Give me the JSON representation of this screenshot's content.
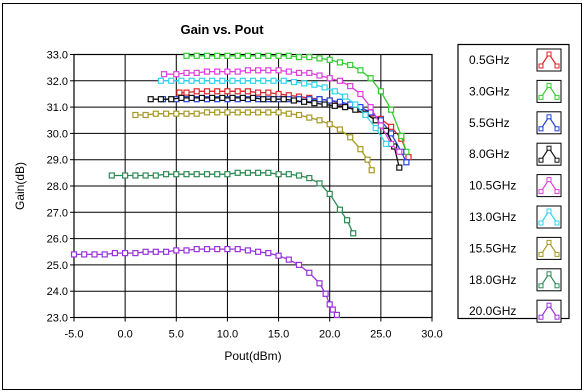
{
  "chart_data": {
    "type": "line",
    "title": "Gain vs. Pout",
    "xlabel": "Pout(dBm)",
    "ylabel": "Gain(dB)",
    "xlim": [
      -5.0,
      30.0
    ],
    "ylim": [
      23.0,
      33.0
    ],
    "xticks": [
      -5.0,
      0.0,
      5.0,
      10.0,
      15.0,
      20.0,
      25.0,
      30.0
    ],
    "yticks": [
      23.0,
      24.0,
      25.0,
      26.0,
      27.0,
      28.0,
      29.0,
      30.0,
      31.0,
      32.0,
      33.0
    ],
    "xtick_labels": [
      "-5.0",
      "0.0",
      "5.0",
      "10.0",
      "15.0",
      "20.0",
      "25.0",
      "30.0"
    ],
    "ytick_labels": [
      "23.0",
      "24.0",
      "25.0",
      "26.0",
      "27.0",
      "28.0",
      "29.0",
      "30.0",
      "31.0",
      "32.0",
      "33.0"
    ],
    "grid": true,
    "legend_position": "right",
    "marker": "open-square",
    "series": [
      {
        "name": "0.5GHz",
        "color": "#e0262b",
        "x": [
          5.3,
          6.0,
          7.0,
          8.0,
          9.0,
          10.0,
          11.0,
          12.0,
          13.0,
          14.0,
          15.0,
          16.0,
          17.0,
          18.0,
          19.0,
          20.0,
          21.0,
          22.0,
          23.0,
          24.0,
          25.0,
          26.0,
          27.0,
          27.7
        ],
        "y": [
          31.55,
          31.55,
          31.6,
          31.6,
          31.6,
          31.6,
          31.6,
          31.6,
          31.55,
          31.55,
          31.5,
          31.45,
          31.4,
          31.35,
          31.3,
          31.25,
          31.15,
          31.05,
          30.9,
          30.75,
          30.55,
          30.25,
          29.8,
          29.1
        ]
      },
      {
        "name": "3.0GHz",
        "color": "#33cc33",
        "x": [
          6.0,
          7.0,
          8.0,
          9.0,
          10.0,
          11.0,
          12.0,
          13.0,
          14.0,
          15.0,
          16.0,
          17.0,
          18.0,
          19.0,
          20.0,
          21.0,
          22.0,
          23.0,
          24.0,
          25.0,
          26.0,
          27.0,
          27.5
        ],
        "y": [
          32.95,
          32.95,
          32.95,
          32.95,
          32.95,
          32.95,
          32.95,
          32.95,
          32.95,
          32.95,
          32.95,
          32.9,
          32.9,
          32.85,
          32.8,
          32.7,
          32.6,
          32.4,
          32.1,
          31.6,
          30.9,
          29.9,
          29.3
        ]
      },
      {
        "name": "5.5GHz",
        "color": "#2244dd",
        "x": [
          3.7,
          5.0,
          6.0,
          7.0,
          8.0,
          9.0,
          10.0,
          11.0,
          12.0,
          13.0,
          14.0,
          15.0,
          16.0,
          17.0,
          18.0,
          19.0,
          20.0,
          21.0,
          22.0,
          23.0,
          24.0,
          25.0,
          26.0,
          27.0,
          27.5
        ],
        "y": [
          31.3,
          31.3,
          31.3,
          31.3,
          31.3,
          31.3,
          31.3,
          31.3,
          31.3,
          31.3,
          31.3,
          31.3,
          31.3,
          31.3,
          31.3,
          31.3,
          31.25,
          31.2,
          31.1,
          31.0,
          30.8,
          30.5,
          30.0,
          29.3,
          28.9
        ]
      },
      {
        "name": "8.0GHz",
        "color": "#111111",
        "x": [
          2.5,
          3.5,
          4.5,
          5.5,
          6.5,
          7.5,
          8.5,
          9.5,
          10.5,
          11.5,
          12.5,
          13.5,
          14.5,
          15.5,
          16.5,
          17.5,
          18.5,
          19.5,
          20.5,
          21.5,
          22.5,
          23.5,
          24.5,
          25.5,
          26.3,
          26.8
        ],
        "y": [
          31.3,
          31.3,
          31.3,
          31.35,
          31.35,
          31.35,
          31.35,
          31.35,
          31.35,
          31.35,
          31.35,
          31.3,
          31.3,
          31.3,
          31.25,
          31.2,
          31.15,
          31.1,
          31.05,
          31.0,
          30.9,
          30.75,
          30.5,
          30.1,
          29.5,
          28.7
        ]
      },
      {
        "name": "10.5GHz",
        "color": "#e040e0",
        "x": [
          3.8,
          5.0,
          6.0,
          7.0,
          8.0,
          9.0,
          10.0,
          11.0,
          12.0,
          13.0,
          14.0,
          15.0,
          16.0,
          17.0,
          18.0,
          19.0,
          20.0,
          21.0,
          22.0,
          23.0,
          24.0,
          25.0,
          26.0,
          26.8
        ],
        "y": [
          32.25,
          32.25,
          32.3,
          32.3,
          32.35,
          32.35,
          32.35,
          32.35,
          32.4,
          32.4,
          32.4,
          32.4,
          32.35,
          32.3,
          32.3,
          32.2,
          32.1,
          32.0,
          31.8,
          31.5,
          31.0,
          30.3,
          29.6,
          29.3
        ]
      },
      {
        "name": "13.0GHz",
        "color": "#33d6ee",
        "x": [
          3.5,
          4.5,
          5.5,
          6.5,
          7.5,
          8.5,
          9.5,
          10.5,
          11.5,
          12.5,
          13.5,
          14.5,
          15.5,
          16.5,
          17.5,
          18.5,
          19.5,
          20.5,
          21.5,
          22.5,
          23.5,
          24.5,
          25.5
        ],
        "y": [
          32.0,
          32.0,
          32.0,
          32.0,
          32.0,
          32.0,
          32.0,
          32.0,
          32.0,
          32.0,
          32.0,
          32.0,
          32.0,
          31.95,
          31.9,
          31.85,
          31.75,
          31.6,
          31.4,
          31.1,
          30.7,
          30.2,
          29.6
        ]
      },
      {
        "name": "15.5GHz",
        "color": "#a89a22",
        "x": [
          1.0,
          2.0,
          3.0,
          4.0,
          5.0,
          6.0,
          7.0,
          8.0,
          9.0,
          10.0,
          11.0,
          12.0,
          13.0,
          14.0,
          15.0,
          16.0,
          17.0,
          18.0,
          19.0,
          20.0,
          21.0,
          22.0,
          23.0,
          23.7,
          24.1
        ],
        "y": [
          30.7,
          30.7,
          30.75,
          30.75,
          30.75,
          30.75,
          30.75,
          30.8,
          30.8,
          30.8,
          30.8,
          30.8,
          30.8,
          30.8,
          30.8,
          30.75,
          30.7,
          30.6,
          30.5,
          30.35,
          30.15,
          29.85,
          29.4,
          29.0,
          28.6
        ]
      },
      {
        "name": "18.0GHz",
        "color": "#2e8a55",
        "x": [
          -1.3,
          0.0,
          1.0,
          2.0,
          3.0,
          4.0,
          5.0,
          6.0,
          7.0,
          8.0,
          9.0,
          10.0,
          11.0,
          12.0,
          13.0,
          14.0,
          15.0,
          16.0,
          17.0,
          18.0,
          19.0,
          20.0,
          21.0,
          21.7,
          22.3
        ],
        "y": [
          28.4,
          28.4,
          28.4,
          28.4,
          28.4,
          28.45,
          28.45,
          28.45,
          28.45,
          28.45,
          28.45,
          28.45,
          28.5,
          28.5,
          28.5,
          28.5,
          28.45,
          28.45,
          28.4,
          28.3,
          28.1,
          27.7,
          27.1,
          26.7,
          26.2
        ]
      },
      {
        "name": "20.0GHz",
        "color": "#9933dd",
        "x": [
          -5.0,
          -4.0,
          -3.0,
          -2.0,
          -1.0,
          0.0,
          1.0,
          2.0,
          3.0,
          4.0,
          5.0,
          6.0,
          7.0,
          8.0,
          9.0,
          10.0,
          11.0,
          12.0,
          13.0,
          14.0,
          15.0,
          16.0,
          17.0,
          18.0,
          19.0,
          19.6,
          20.0,
          20.3,
          20.7
        ],
        "y": [
          25.4,
          25.4,
          25.4,
          25.4,
          25.45,
          25.45,
          25.45,
          25.5,
          25.5,
          25.5,
          25.55,
          25.55,
          25.6,
          25.6,
          25.6,
          25.6,
          25.6,
          25.55,
          25.5,
          25.45,
          25.35,
          25.2,
          25.0,
          24.7,
          24.3,
          23.9,
          23.5,
          23.3,
          23.1
        ]
      }
    ]
  }
}
